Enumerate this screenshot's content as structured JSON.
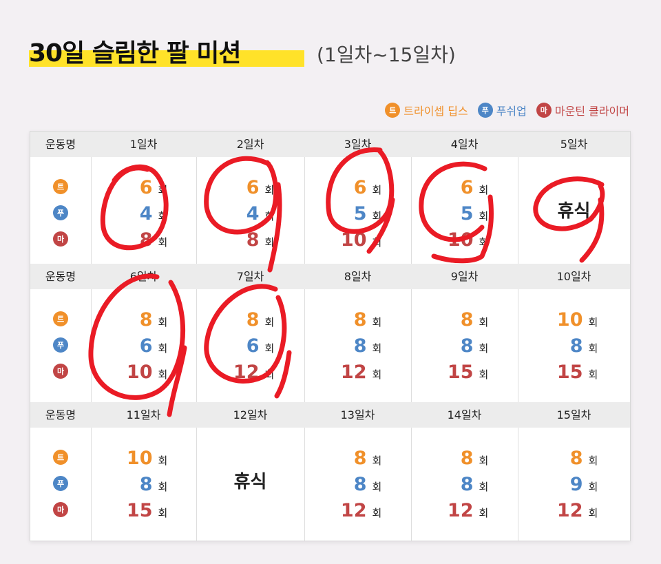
{
  "title": {
    "main": "30일 슬림한 팔 미션",
    "sub": "(1일차~15일차)"
  },
  "legend": [
    {
      "badge": "트",
      "label": "트라이셉 딥스",
      "color": "#f0902a"
    },
    {
      "badge": "푸",
      "label": "푸쉬업",
      "color": "#4d86c6"
    },
    {
      "badge": "마",
      "label": "마운틴 클라이머",
      "color": "#c14545"
    }
  ],
  "table": {
    "exercise_header": "운동명",
    "exercise_badges": [
      "트",
      "푸",
      "마"
    ],
    "rep_unit": "회",
    "rest_label": "휴식",
    "rows": [
      {
        "days": [
          {
            "label": "1일차",
            "reps": [
              "6",
              "4",
              "8"
            ]
          },
          {
            "label": "2일차",
            "reps": [
              "6",
              "4",
              "8"
            ]
          },
          {
            "label": "3일차",
            "reps": [
              "6",
              "5",
              "10"
            ]
          },
          {
            "label": "4일차",
            "reps": [
              "6",
              "5",
              "10"
            ]
          },
          {
            "label": "5일차",
            "rest": true
          }
        ]
      },
      {
        "days": [
          {
            "label": "6일차",
            "reps": [
              "8",
              "6",
              "10"
            ]
          },
          {
            "label": "7일차",
            "reps": [
              "8",
              "6",
              "12"
            ]
          },
          {
            "label": "8일차",
            "reps": [
              "8",
              "8",
              "12"
            ]
          },
          {
            "label": "9일차",
            "reps": [
              "8",
              "8",
              "15"
            ]
          },
          {
            "label": "10일차",
            "reps": [
              "10",
              "8",
              "15"
            ]
          }
        ]
      },
      {
        "days": [
          {
            "label": "11일차",
            "reps": [
              "10",
              "8",
              "15"
            ]
          },
          {
            "label": "12일차",
            "rest": true
          },
          {
            "label": "13일차",
            "reps": [
              "8",
              "8",
              "12"
            ]
          },
          {
            "label": "14일차",
            "reps": [
              "8",
              "8",
              "12"
            ]
          },
          {
            "label": "15일차",
            "reps": [
              "8",
              "9",
              "12"
            ]
          }
        ]
      }
    ]
  },
  "annotations": {
    "completed_days": [
      "1일차",
      "2일차",
      "3일차",
      "4일차",
      "5일차",
      "6일차",
      "7일차"
    ],
    "mark_color": "#ea1b25"
  }
}
